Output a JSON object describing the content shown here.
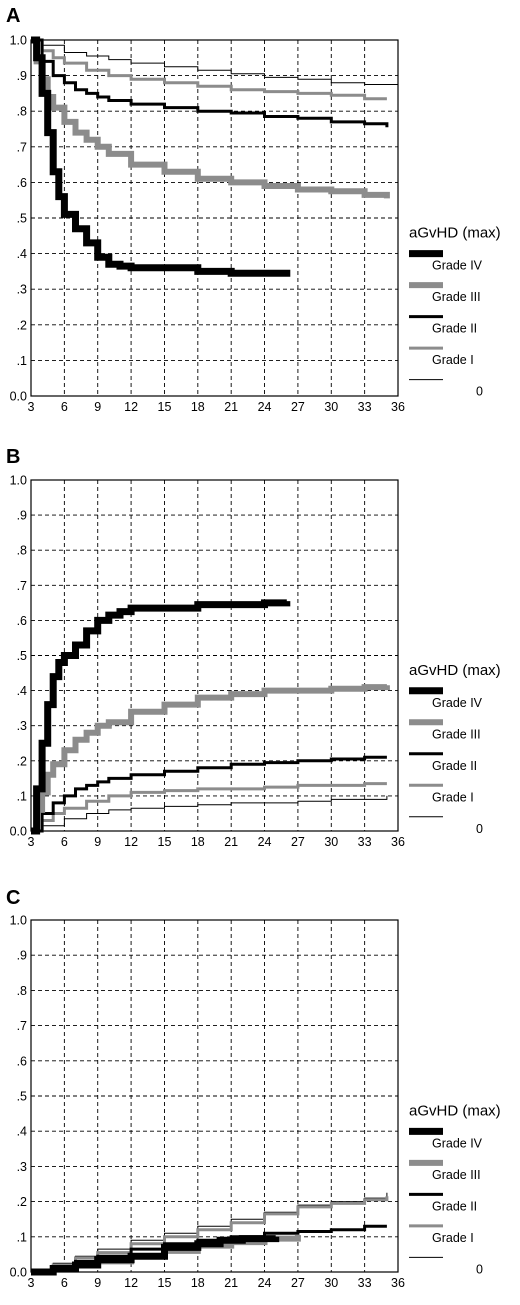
{
  "figure": {
    "background": "#ffffff",
    "ink": "#000000"
  },
  "legend": {
    "title": "aGvHD (max)",
    "entries": [
      {
        "label": "Grade IV",
        "color": "#000000",
        "width": 7
      },
      {
        "label": "Grade III",
        "color": "#8c8c8c",
        "width": 6
      },
      {
        "label": "Grade II",
        "color": "#000000",
        "width": 3
      },
      {
        "label": "Grade I",
        "color": "#8c8c8c",
        "width": 3
      },
      {
        "label": "0",
        "color": "#000000",
        "width": 1
      }
    ]
  },
  "chart_data": [
    {
      "panel": "A",
      "type": "line",
      "xlim": [
        3,
        36
      ],
      "ylim": [
        0,
        1
      ],
      "xticks": [
        "3",
        "6",
        "9",
        "12",
        "15",
        "18",
        "21",
        "24",
        "27",
        "30",
        "33",
        "36"
      ],
      "yticks": [
        "0.0",
        ".1",
        ".2",
        ".3",
        ".4",
        ".5",
        ".6",
        ".7",
        ".8",
        ".9",
        "1.0"
      ],
      "grid": true,
      "legend_position": "right",
      "series": [
        {
          "name": "Grade IV",
          "x": [
            3,
            3.5,
            4,
            4.5,
            5,
            5.5,
            6,
            7,
            8,
            9,
            10,
            11,
            12,
            15,
            18,
            21,
            24,
            26
          ],
          "y": [
            1.0,
            0.95,
            0.85,
            0.74,
            0.63,
            0.56,
            0.51,
            0.47,
            0.43,
            0.39,
            0.37,
            0.365,
            0.36,
            0.36,
            0.35,
            0.345,
            0.345,
            0.335
          ]
        },
        {
          "name": "Grade III",
          "x": [
            3,
            3.5,
            4,
            4.5,
            5,
            6,
            7,
            8,
            9,
            10,
            12,
            15,
            18,
            21,
            24,
            27,
            30,
            33,
            35
          ],
          "y": [
            1.0,
            0.94,
            0.89,
            0.84,
            0.81,
            0.77,
            0.74,
            0.72,
            0.7,
            0.68,
            0.65,
            0.63,
            0.61,
            0.6,
            0.59,
            0.58,
            0.575,
            0.565,
            0.555
          ]
        },
        {
          "name": "Grade II",
          "x": [
            3,
            4,
            5,
            6,
            7,
            8,
            9,
            10,
            12,
            15,
            18,
            21,
            24,
            27,
            30,
            33,
            35
          ],
          "y": [
            1.0,
            0.94,
            0.9,
            0.88,
            0.86,
            0.85,
            0.84,
            0.83,
            0.82,
            0.81,
            0.8,
            0.795,
            0.785,
            0.78,
            0.77,
            0.765,
            0.755
          ]
        },
        {
          "name": "Grade I",
          "x": [
            3,
            4,
            5,
            6,
            8,
            10,
            12,
            15,
            18,
            21,
            24,
            27,
            30,
            33,
            35
          ],
          "y": [
            1.0,
            0.97,
            0.95,
            0.935,
            0.915,
            0.9,
            0.89,
            0.88,
            0.87,
            0.86,
            0.855,
            0.85,
            0.845,
            0.835,
            0.835
          ]
        },
        {
          "name": "0",
          "x": [
            3,
            4,
            6,
            8,
            10,
            12,
            15,
            18,
            21,
            24,
            27,
            30,
            33,
            36
          ],
          "y": [
            1.0,
            0.985,
            0.965,
            0.955,
            0.945,
            0.935,
            0.925,
            0.915,
            0.905,
            0.895,
            0.89,
            0.88,
            0.875,
            0.86
          ]
        }
      ]
    },
    {
      "panel": "B",
      "type": "line",
      "xlim": [
        3,
        36
      ],
      "ylim": [
        0,
        1
      ],
      "xticks": [
        "3",
        "6",
        "9",
        "12",
        "15",
        "18",
        "21",
        "24",
        "27",
        "30",
        "33",
        "36"
      ],
      "yticks": [
        "0.0",
        ".1",
        ".2",
        ".3",
        ".4",
        ".5",
        ".6",
        ".7",
        ".8",
        ".9",
        "1.0"
      ],
      "grid": true,
      "legend_position": "right",
      "series": [
        {
          "name": "Grade IV",
          "x": [
            3,
            3.5,
            4,
            4.5,
            5,
            5.5,
            6,
            7,
            8,
            9,
            10,
            11,
            12,
            15,
            18,
            21,
            24,
            26
          ],
          "y": [
            0.0,
            0.12,
            0.25,
            0.36,
            0.44,
            0.48,
            0.5,
            0.53,
            0.57,
            0.6,
            0.615,
            0.625,
            0.635,
            0.635,
            0.645,
            0.645,
            0.65,
            0.655
          ]
        },
        {
          "name": "Grade III",
          "x": [
            3,
            3.5,
            4,
            4.5,
            5,
            6,
            7,
            8,
            9,
            10,
            12,
            15,
            18,
            21,
            24,
            27,
            30,
            33,
            35
          ],
          "y": [
            0.0,
            0.06,
            0.11,
            0.16,
            0.19,
            0.23,
            0.26,
            0.28,
            0.3,
            0.31,
            0.34,
            0.36,
            0.38,
            0.39,
            0.4,
            0.4,
            0.405,
            0.41,
            0.415
          ]
        },
        {
          "name": "Grade II",
          "x": [
            3,
            4,
            5,
            6,
            7,
            8,
            9,
            10,
            12,
            15,
            18,
            21,
            24,
            27,
            30,
            33,
            35
          ],
          "y": [
            0.0,
            0.05,
            0.08,
            0.1,
            0.12,
            0.13,
            0.14,
            0.15,
            0.16,
            0.17,
            0.18,
            0.19,
            0.195,
            0.2,
            0.205,
            0.21,
            0.21
          ]
        },
        {
          "name": "Grade I",
          "x": [
            3,
            4,
            5,
            6,
            8,
            10,
            12,
            15,
            18,
            21,
            24,
            27,
            30,
            33,
            35
          ],
          "y": [
            0.0,
            0.03,
            0.05,
            0.065,
            0.085,
            0.1,
            0.11,
            0.115,
            0.12,
            0.12,
            0.125,
            0.13,
            0.13,
            0.135,
            0.135
          ]
        },
        {
          "name": "0",
          "x": [
            3,
            4,
            6,
            8,
            10,
            12,
            15,
            18,
            21,
            24,
            27,
            30,
            33,
            35
          ],
          "y": [
            0.0,
            0.015,
            0.035,
            0.05,
            0.06,
            0.065,
            0.07,
            0.075,
            0.08,
            0.08,
            0.085,
            0.09,
            0.09,
            0.1
          ]
        }
      ]
    },
    {
      "panel": "C",
      "type": "line",
      "xlim": [
        3,
        36
      ],
      "ylim": [
        0,
        1
      ],
      "xticks": [
        "3",
        "6",
        "9",
        "12",
        "15",
        "18",
        "21",
        "24",
        "27",
        "30",
        "33",
        "36"
      ],
      "yticks": [
        "0.0",
        ".1",
        ".2",
        ".3",
        ".4",
        ".5",
        ".6",
        ".7",
        ".8",
        ".9",
        "1.0"
      ],
      "grid": true,
      "legend_position": "right",
      "series": [
        {
          "name": "Grade IV",
          "x": [
            3,
            5,
            7,
            9,
            12,
            15,
            18,
            20,
            22,
            25
          ],
          "y": [
            0.0,
            0.01,
            0.02,
            0.035,
            0.045,
            0.07,
            0.08,
            0.09,
            0.095,
            0.1
          ]
        },
        {
          "name": "Grade III",
          "x": [
            3,
            5,
            7,
            9,
            12,
            15,
            18,
            21,
            24,
            27
          ],
          "y": [
            0.0,
            0.01,
            0.02,
            0.03,
            0.045,
            0.06,
            0.075,
            0.085,
            0.095,
            0.105
          ]
        },
        {
          "name": "Grade II",
          "x": [
            3,
            5,
            7,
            9,
            12,
            15,
            18,
            21,
            24,
            27,
            30,
            33,
            35
          ],
          "y": [
            0.0,
            0.015,
            0.03,
            0.045,
            0.065,
            0.08,
            0.09,
            0.1,
            0.11,
            0.115,
            0.12,
            0.13,
            0.13
          ]
        },
        {
          "name": "Grade I",
          "x": [
            3,
            5,
            7,
            9,
            12,
            15,
            18,
            21,
            24,
            27,
            30,
            33,
            35
          ],
          "y": [
            0.0,
            0.02,
            0.04,
            0.055,
            0.08,
            0.1,
            0.12,
            0.14,
            0.165,
            0.185,
            0.195,
            0.205,
            0.215
          ]
        },
        {
          "name": "0",
          "x": [
            3,
            5,
            7,
            9,
            12,
            15,
            18,
            21,
            24,
            27,
            30,
            33,
            35
          ],
          "y": [
            0.0,
            0.025,
            0.045,
            0.065,
            0.09,
            0.11,
            0.13,
            0.15,
            0.17,
            0.19,
            0.2,
            0.21,
            0.225
          ]
        }
      ]
    }
  ]
}
